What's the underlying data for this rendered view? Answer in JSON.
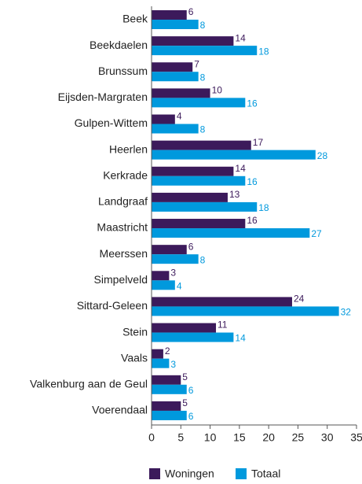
{
  "chart_data": {
    "type": "barh",
    "categories": [
      "Beek",
      "Beekdaelen",
      "Brunssum",
      "Eijsden-Margraten",
      "Gulpen-Wittem",
      "Heerlen",
      "Kerkrade",
      "Landgraaf",
      "Maastricht",
      "Meerssen",
      "Simpelveld",
      "Sittard-Geleen",
      "Stein",
      "Vaals",
      "Valkenburg aan de Geul",
      "Voerendaal"
    ],
    "series": [
      {
        "name": "Woningen",
        "color": "#3c1a5b",
        "values": [
          6,
          14,
          7,
          10,
          4,
          17,
          14,
          13,
          16,
          6,
          3,
          24,
          11,
          2,
          5,
          5
        ]
      },
      {
        "name": "Totaal",
        "color": "#0099dd",
        "values": [
          8,
          18,
          8,
          16,
          8,
          28,
          16,
          18,
          27,
          8,
          4,
          32,
          14,
          3,
          6,
          6
        ]
      }
    ],
    "xlim": [
      0,
      35
    ],
    "xticks": [
      0,
      5,
      10,
      15,
      20,
      25,
      30,
      35
    ],
    "legend": "bottom"
  }
}
